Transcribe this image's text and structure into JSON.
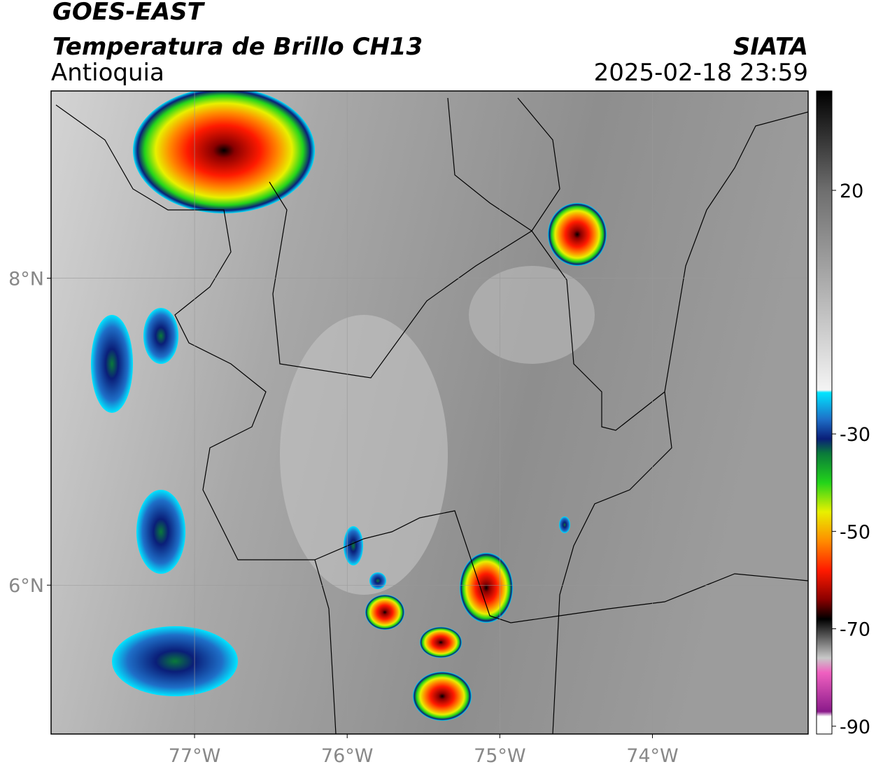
{
  "header": {
    "satellite": "GOES-EAST",
    "product": "Temperatura de Brillo CH13",
    "region": "Antioquia",
    "source": "SIATA",
    "datetime": "2025-02-18 23:59"
  },
  "map": {
    "xlim": [
      -77.94,
      -72.98
    ],
    "ylim": [
      5.03,
      9.22
    ],
    "xticks": [
      {
        "value": -77,
        "label": "77°W"
      },
      {
        "value": -76,
        "label": "76°W"
      },
      {
        "value": -75,
        "label": "75°W"
      },
      {
        "value": -74,
        "label": "74°W"
      }
    ],
    "yticks": [
      {
        "value": 8,
        "label": "8°N"
      },
      {
        "value": 6,
        "label": "6°N"
      }
    ],
    "grid": true
  },
  "colorbar": {
    "lim": [
      -91.6,
      40.4
    ],
    "ticks": [
      20,
      -30,
      -50,
      -70,
      -90
    ],
    "colormap": [
      {
        "value": 40.4,
        "color": "#000000"
      },
      {
        "value": 20,
        "color": "#6e6e6e"
      },
      {
        "value": -21,
        "color": "#f4f4f4"
      },
      {
        "value": -21.5,
        "color": "#00e5ff"
      },
      {
        "value": -27,
        "color": "#1e6fc8"
      },
      {
        "value": -31,
        "color": "#0a1e78"
      },
      {
        "value": -34,
        "color": "#0a7a3a"
      },
      {
        "value": -40,
        "color": "#22d41a"
      },
      {
        "value": -46,
        "color": "#e8f000"
      },
      {
        "value": -52,
        "color": "#ff8c00"
      },
      {
        "value": -58,
        "color": "#ff1a00"
      },
      {
        "value": -64,
        "color": "#8a0000"
      },
      {
        "value": -68,
        "color": "#000000"
      },
      {
        "value": -76,
        "color": "#c8c8c8"
      },
      {
        "value": -79,
        "color": "#f060c0"
      },
      {
        "value": -87,
        "color": "#8a1a8a"
      },
      {
        "value": -88,
        "color": "#ffffff"
      }
    ]
  }
}
